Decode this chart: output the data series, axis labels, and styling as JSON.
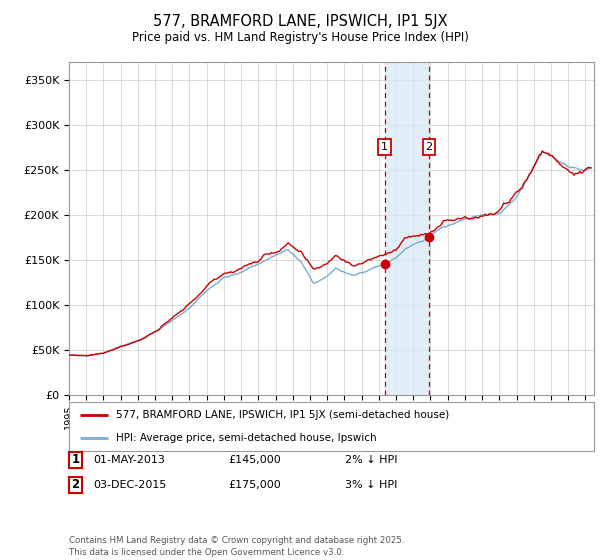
{
  "title": "577, BRAMFORD LANE, IPSWICH, IP1 5JX",
  "subtitle": "Price paid vs. HM Land Registry's House Price Index (HPI)",
  "ylabel_ticks": [
    "£0",
    "£50K",
    "£100K",
    "£150K",
    "£200K",
    "£250K",
    "£300K",
    "£350K"
  ],
  "ytick_values": [
    0,
    50000,
    100000,
    150000,
    200000,
    250000,
    300000,
    350000
  ],
  "ylim": [
    0,
    370000
  ],
  "xlim_start": 1995.0,
  "xlim_end": 2025.5,
  "hpi_color": "#7aadd4",
  "price_color": "#cc0000",
  "transaction1_date": 2013.33,
  "transaction1_price": 145000,
  "transaction1_label": "1",
  "transaction2_date": 2015.92,
  "transaction2_price": 175000,
  "transaction2_label": "2",
  "shaded_region_start": 2013.33,
  "shaded_region_end": 2015.92,
  "legend_price_label": "577, BRAMFORD LANE, IPSWICH, IP1 5JX (semi-detached house)",
  "legend_hpi_label": "HPI: Average price, semi-detached house, Ipswich",
  "table_row1": [
    "1",
    "01-MAY-2013",
    "£145,000",
    "2% ↓ HPI"
  ],
  "table_row2": [
    "2",
    "03-DEC-2015",
    "£175,000",
    "3% ↓ HPI"
  ],
  "footer": "Contains HM Land Registry data © Crown copyright and database right 2025.\nThis data is licensed under the Open Government Licence v3.0.",
  "background_color": "#ffffff",
  "grid_color": "#cccccc"
}
